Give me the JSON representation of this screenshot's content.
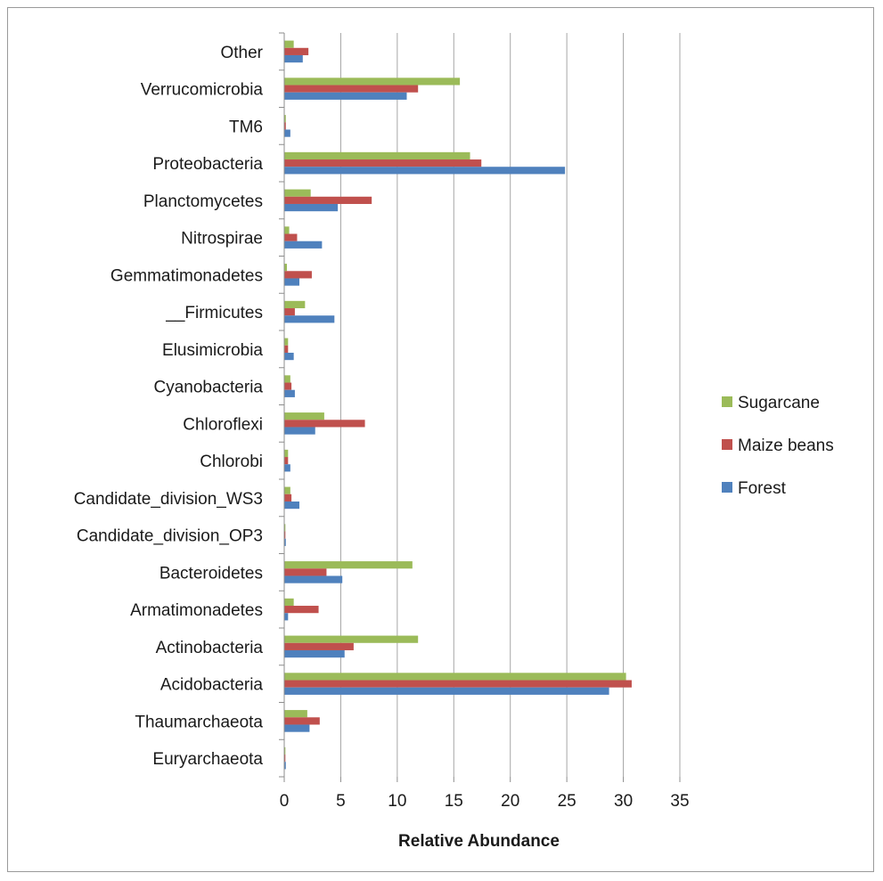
{
  "chart_data": {
    "type": "bar",
    "orientation": "horizontal",
    "xlabel": "Relative Abundance",
    "xlim": [
      0,
      35
    ],
    "xticks": [
      0,
      5,
      10,
      15,
      20,
      25,
      30,
      35
    ],
    "grid": true,
    "legend_position": "right",
    "categories": [
      "Other",
      "Verrucomicrobia",
      "TM6",
      "Proteobacteria",
      "Planctomycetes",
      "Nitrospirae",
      "Gemmatimonadetes",
      "__Firmicutes",
      "Elusimicrobia",
      "Cyanobacteria",
      "Chloroflexi",
      "Chlorobi",
      "Candidate_division_WS3",
      "Candidate_division_OP3",
      "Bacteroidetes",
      "Armatimonadetes",
      "Actinobacteria",
      "Acidobacteria",
      "Thaumarchaeota",
      "Euryarchaeota"
    ],
    "series": [
      {
        "name": "Sugarcane",
        "color": "#9BBB59",
        "values": [
          0.8,
          15.5,
          0.1,
          16.4,
          2.3,
          0.4,
          0.2,
          1.8,
          0.3,
          0.5,
          3.5,
          0.3,
          0.5,
          0.05,
          11.3,
          0.8,
          11.8,
          30.2,
          2.0,
          0.05
        ]
      },
      {
        "name": "Maize beans",
        "color": "#C0504D",
        "values": [
          2.1,
          11.8,
          0.1,
          17.4,
          7.7,
          1.1,
          2.4,
          0.9,
          0.3,
          0.6,
          7.1,
          0.3,
          0.6,
          0.05,
          3.7,
          3.0,
          6.1,
          30.7,
          3.1,
          0.05
        ]
      },
      {
        "name": "Forest",
        "color": "#4F81BD",
        "values": [
          1.6,
          10.8,
          0.5,
          24.8,
          4.7,
          3.3,
          1.3,
          4.4,
          0.8,
          0.9,
          2.7,
          0.5,
          1.3,
          0.1,
          5.1,
          0.3,
          5.3,
          28.7,
          2.2,
          0.1
        ]
      }
    ],
    "legend": [
      "Sugarcane",
      "Maize beans",
      "Forest"
    ]
  }
}
